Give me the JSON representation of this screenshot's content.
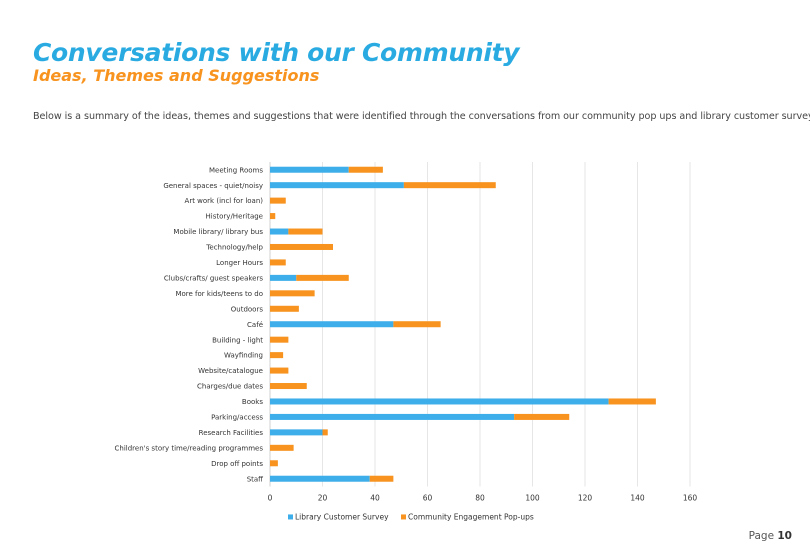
{
  "header": {
    "title": "Conversations with our Community",
    "subtitle": "Ideas, Themes and Suggestions"
  },
  "intro": {
    "text": "Below is a summary of the ideas, themes and suggestions that were identified through the conversations from our community pop ups and library customer survey."
  },
  "footer": {
    "page_label": "Page",
    "page_number": "10"
  },
  "colors": {
    "title": "#29abe2",
    "subtitle": "#f7931e",
    "series_survey": "#3daee9",
    "series_popups": "#f7931e",
    "gridline": "#e6e6e6"
  },
  "chart_data": {
    "type": "bar",
    "orientation": "horizontal",
    "stacked": true,
    "categories": [
      "Meeting Rooms",
      "General spaces - quiet/noisy",
      "Art work (incl for loan)",
      "History/Heritage",
      "Mobile library/ library bus",
      "Technology/help",
      "Longer Hours",
      "Clubs/crafts/ guest speakers",
      "More for kids/teens to do",
      "Outdoors",
      "Café",
      "Building - light",
      "Wayfinding",
      "Website/catalogue",
      "Charges/due dates",
      "Books",
      "Parking/access",
      "Research Facilities",
      "Children's story time/reading programmes",
      "Drop off points",
      "Staff"
    ],
    "series": [
      {
        "name": "Library Customer Survey",
        "values": [
          30,
          51,
          0,
          0,
          7,
          0,
          0,
          10,
          0,
          0,
          47,
          0,
          0,
          0,
          0,
          129,
          93,
          20,
          0,
          0,
          38
        ]
      },
      {
        "name": "Community Engagement Pop-ups",
        "values": [
          13,
          35,
          6,
          2,
          13,
          24,
          6,
          20,
          17,
          11,
          18,
          7,
          5,
          7,
          14,
          18,
          21,
          2,
          9,
          3,
          9
        ]
      }
    ],
    "xlim": [
      0,
      160
    ],
    "xticks": [
      "0",
      "20",
      "40",
      "60",
      "80",
      "100",
      "120",
      "140",
      "160"
    ],
    "grid": true,
    "legend_position": "bottom"
  }
}
